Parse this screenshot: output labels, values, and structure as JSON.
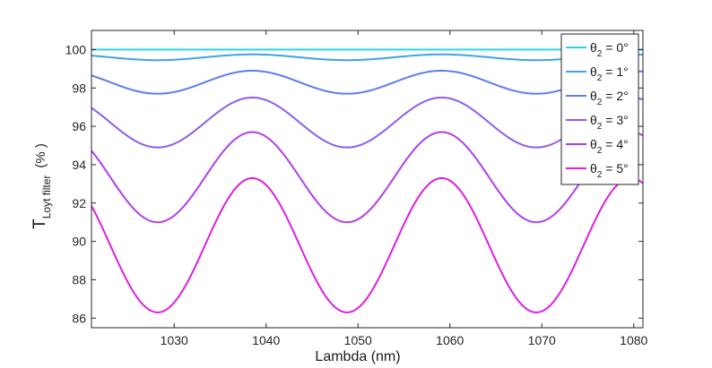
{
  "chart_data": {
    "type": "line",
    "xlabel": "Lambda (nm)",
    "ylabel": {
      "main": "T",
      "subscript": "Loyt filter",
      "unit": "(% )"
    },
    "xlim": [
      1021,
      1081
    ],
    "ylim": [
      85.5,
      101
    ],
    "xticks": [
      1030,
      1040,
      1050,
      1060,
      1070,
      1080
    ],
    "yticks": [
      86,
      88,
      90,
      92,
      94,
      96,
      98,
      100
    ],
    "grid": false,
    "legend_position": "top-right",
    "series": [
      {
        "name": "θ2 = 0°",
        "label_main": "θ",
        "label_sub": "2",
        "label_rest": " = 0°",
        "color": "#2ed3e6",
        "max": 100.0,
        "min": 100.0
      },
      {
        "name": "θ2 = 1°",
        "label_main": "θ",
        "label_sub": "2",
        "label_rest": " = 1°",
        "color": "#3fa2e6",
        "max": 99.75,
        "min": 99.45
      },
      {
        "name": "θ2 = 2°",
        "label_main": "θ",
        "label_sub": "2",
        "label_rest": " = 2°",
        "color": "#5c7df0",
        "max": 98.9,
        "min": 97.7
      },
      {
        "name": "θ2 = 3°",
        "label_main": "θ",
        "label_sub": "2",
        "label_rest": " = 3°",
        "color": "#8d5cf0",
        "max": 97.5,
        "min": 94.9
      },
      {
        "name": "θ2 = 4°",
        "label_main": "θ",
        "label_sub": "2",
        "label_rest": " = 4°",
        "color": "#b23fe6",
        "max": 95.7,
        "min": 91.0
      },
      {
        "name": "θ2 = 5°",
        "label_main": "θ",
        "label_sub": "2",
        "label_rest": " = 5°",
        "color": "#e01ee0",
        "max": 93.3,
        "min": 86.3
      }
    ],
    "oscillation": {
      "peaks_at_nm": [
        1038.5,
        1059.0
      ],
      "period_nm": 20.6
    }
  }
}
